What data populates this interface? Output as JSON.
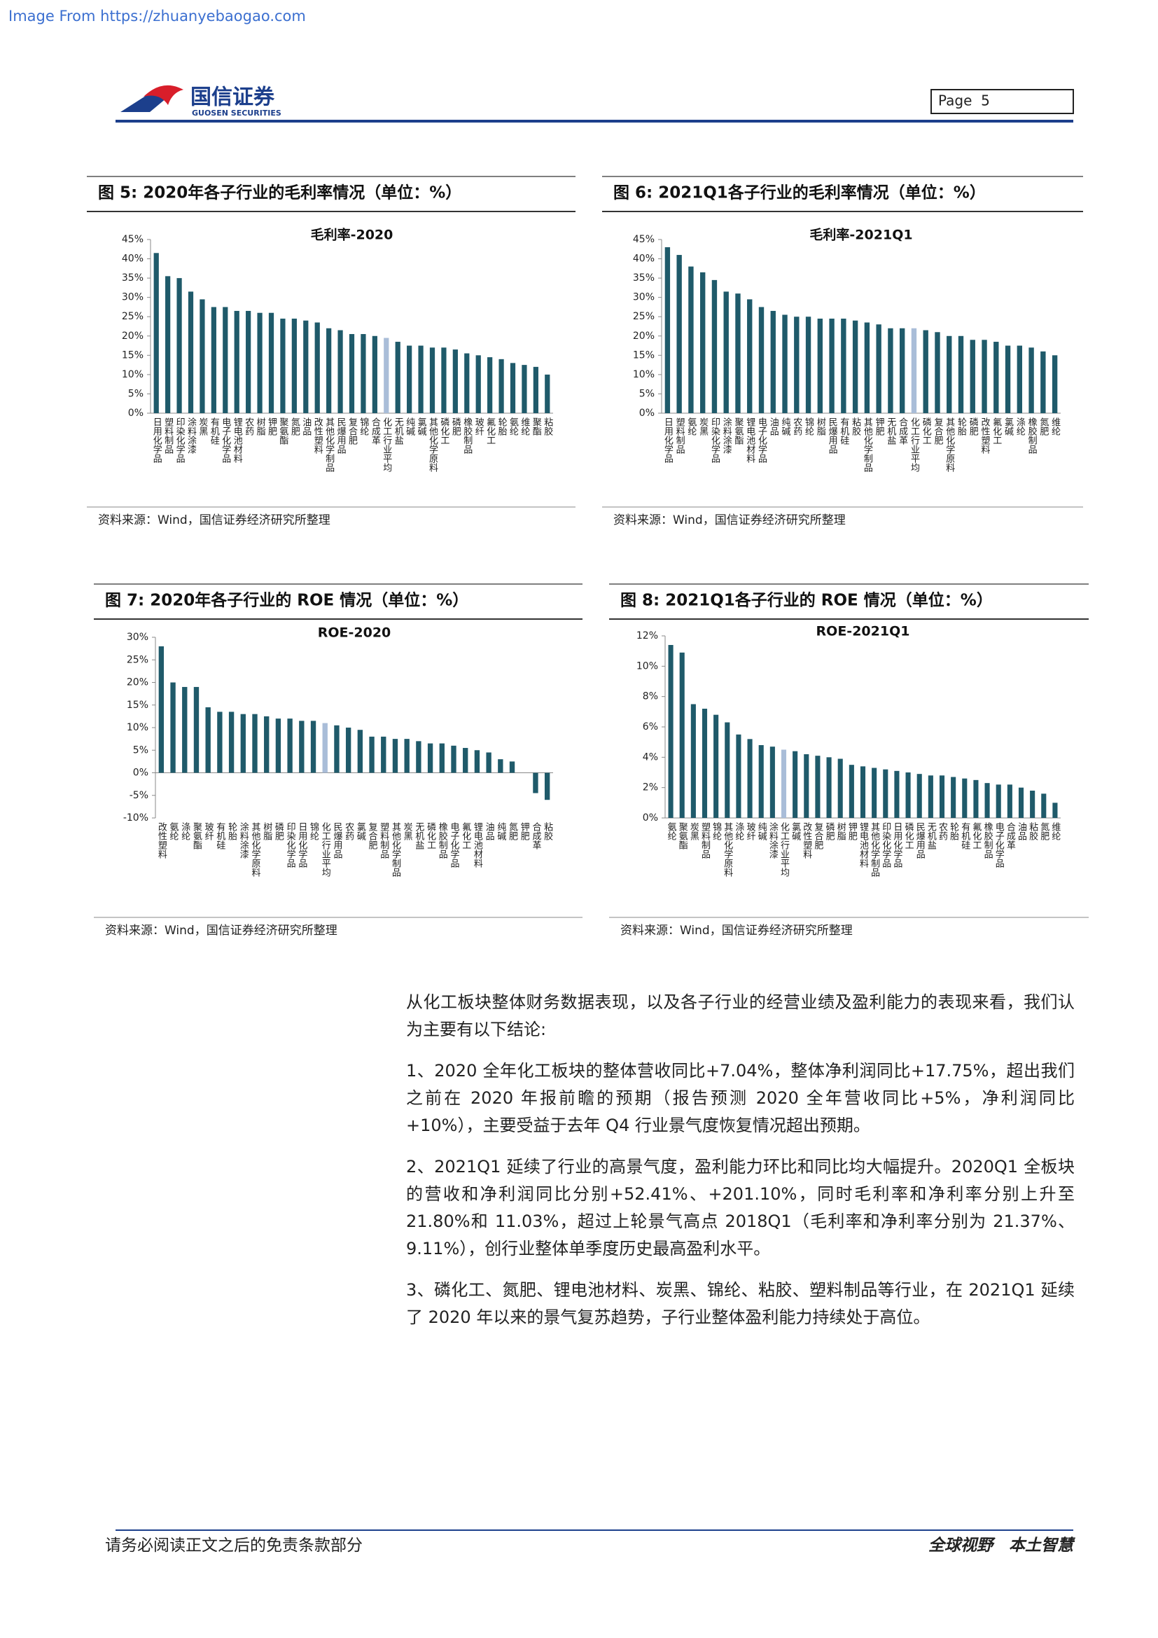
{
  "header": {
    "source_url": "Image From https://zhuanyebaogao.com",
    "logo_cn": "国信证券",
    "logo_en": "GUOSEN SECURITIES",
    "page": "Page  5"
  },
  "chart_data": [
    {
      "type": "bar",
      "figure_label": "图 5:",
      "title": "2020年各子行业的毛利率情况（单位：%）",
      "chart_title": "毛利率-2020",
      "categories": [
        "日用化学品",
        "塑料制品",
        "印染化学品",
        "涂料涂漆",
        "炭黑",
        "有机硅",
        "电子化学品",
        "锂电池材料",
        "农药",
        "树脂",
        "钾肥",
        "聚氨酯",
        "氮肥",
        "油品",
        "改性塑料",
        "其他化学制品",
        "民爆用品",
        "复合肥",
        "锦纶",
        "合成革",
        "化工行业平均",
        "无机盐",
        "纯碱",
        "氯碱",
        "其他化学原料",
        "磷化工",
        "磷肥",
        "橡胶制品",
        "玻纤",
        "氟化工",
        "轮胎",
        "氨纶",
        "维纶",
        "聚酯",
        "粘胶"
      ],
      "values": [
        41.5,
        35.5,
        35,
        31.5,
        29.5,
        27.5,
        27.5,
        26.5,
        26.5,
        26,
        26,
        24.5,
        24.5,
        24,
        23.5,
        22,
        21.5,
        20.5,
        20.5,
        20,
        19.5,
        18.5,
        17.5,
        17.5,
        17,
        17,
        16.5,
        15.5,
        15,
        14.5,
        14,
        13,
        12.5,
        12,
        10
      ],
      "color": "#1f5a6a",
      "highlight_index": 20,
      "highlight_color": "#a9bdd8",
      "ylim": [
        0,
        45
      ],
      "yticks": [
        {
          "value": 0,
          "label": "0%"
        },
        {
          "value": 5,
          "label": "5%"
        },
        {
          "value": 10,
          "label": "10%"
        },
        {
          "value": 15,
          "label": "15%"
        },
        {
          "value": 20,
          "label": "20%"
        },
        {
          "value": 25,
          "label": "25%"
        },
        {
          "value": 30,
          "label": "30%"
        },
        {
          "value": 35,
          "label": "35%"
        },
        {
          "value": 40,
          "label": "40%"
        },
        {
          "value": 45,
          "label": "45%"
        }
      ],
      "source": "资料来源：Wind，国信证券经济研究所整理"
    },
    {
      "type": "bar",
      "figure_label": "图 6:",
      "title": "2021Q1各子行业的毛利率情况（单位：%）",
      "chart_title": "毛利率-2021Q1",
      "categories": [
        "日用化学品",
        "塑料制品",
        "氨纶",
        "炭黑",
        "印染化学品",
        "涂料涂漆",
        "聚氨酯",
        "锂电池材料",
        "电子化学品",
        "油品",
        "纯碱",
        "农药",
        "锦纶",
        "树脂",
        "民爆用品",
        "有机硅",
        "粘胶",
        "其他化学制品",
        "钾肥",
        "无机盐",
        "合成革",
        "化工行业平均",
        "磷化工",
        "复合肥",
        "其他化学原料",
        "轮胎",
        "磷肥",
        "改性塑料",
        "氟化工",
        "氯碱",
        "涤纶",
        "橡胶制品",
        "氮肥",
        "维纶"
      ],
      "values": [
        43,
        41,
        38,
        36.5,
        34.5,
        31.5,
        31,
        29.5,
        27.5,
        26.5,
        25.5,
        25,
        25,
        24.5,
        24.5,
        24.5,
        24,
        23.5,
        23,
        22,
        22,
        22,
        21.5,
        21,
        20,
        20,
        19,
        19,
        18.5,
        17.5,
        17.5,
        17,
        16,
        15
      ],
      "color": "#1f5a6a",
      "highlight_index": 21,
      "highlight_color": "#a9bdd8",
      "ylim": [
        0,
        45
      ],
      "yticks": [
        {
          "value": 0,
          "label": "0%"
        },
        {
          "value": 5,
          "label": "5%"
        },
        {
          "value": 10,
          "label": "10%"
        },
        {
          "value": 15,
          "label": "15%"
        },
        {
          "value": 20,
          "label": "20%"
        },
        {
          "value": 25,
          "label": "25%"
        },
        {
          "value": 30,
          "label": "30%"
        },
        {
          "value": 35,
          "label": "35%"
        },
        {
          "value": 40,
          "label": "40%"
        },
        {
          "value": 45,
          "label": "45%"
        }
      ],
      "source": "资料来源：Wind，国信证券经济研究所整理"
    },
    {
      "type": "bar",
      "figure_label": "图 7:",
      "title": "2020年各子行业的 ROE 情况（单位：%）",
      "chart_title": "ROE-2020",
      "categories": [
        "改性塑料",
        "氨纶",
        "涤纶",
        "聚氨酯",
        "玻纤",
        "有机硅",
        "轮胎",
        "涂料涂漆",
        "其他化学原料",
        "树脂",
        "磷肥",
        "印染化学品",
        "日用化学品",
        "锦纶",
        "化工行业平均",
        "民爆用品",
        "农药",
        "氯碱",
        "复合肥",
        "塑料制品",
        "其他化学制品",
        "炭黑",
        "无机盐",
        "磷化工",
        "橡胶制品",
        "电子化学品",
        "氟化工",
        "锂电池材料",
        "油品",
        "纯碱",
        "氮肥",
        "钾肥",
        "合成革",
        "粘胶"
      ],
      "values": [
        28,
        20,
        19,
        19,
        14.5,
        13.5,
        13.5,
        13,
        13,
        12.5,
        12,
        12,
        11.5,
        11.5,
        11,
        10.5,
        10,
        9.5,
        8,
        8,
        7.5,
        7.5,
        7,
        6.5,
        6.5,
        6,
        5.5,
        5,
        4.5,
        3,
        2.5,
        0,
        -4.5,
        -6
      ],
      "color": "#1f5a6a",
      "highlight_index": 14,
      "highlight_color": "#a9bdd8",
      "ylim": [
        -10,
        30
      ],
      "yticks": [
        {
          "value": -10,
          "label": "-10%"
        },
        {
          "value": -5,
          "label": "-5%"
        },
        {
          "value": 0,
          "label": "0%"
        },
        {
          "value": 5,
          "label": "5%"
        },
        {
          "value": 10,
          "label": "10%"
        },
        {
          "value": 15,
          "label": "15%"
        },
        {
          "value": 20,
          "label": "20%"
        },
        {
          "value": 25,
          "label": "25%"
        },
        {
          "value": 30,
          "label": "30%"
        }
      ],
      "source": "资料来源：Wind，国信证券经济研究所整理"
    },
    {
      "type": "bar",
      "figure_label": "图 8:",
      "title": "2021Q1各子行业的 ROE 情况（单位：%）",
      "chart_title": "ROE-2021Q1",
      "categories": [
        "氨纶",
        "聚氨酯",
        "炭黑",
        "塑料制品",
        "锦纶",
        "其他化学原料",
        "涤纶",
        "玻纤",
        "纯碱",
        "涂料涂漆",
        "化工行业平均",
        "氯碱",
        "改性塑料",
        "复合肥",
        "磷肥",
        "树脂",
        "钾肥",
        "锂电池材料",
        "其他化学制品",
        "印染化学品",
        "日用化学品",
        "磷化工",
        "民爆用品",
        "无机盐",
        "农药",
        "轮胎",
        "有机硅",
        "氟化工",
        "橡胶制品",
        "电子化学品",
        "合成革",
        "油品",
        "粘胶",
        "氮肥",
        "维纶"
      ],
      "values": [
        11.4,
        10.9,
        7.5,
        7.2,
        6.8,
        6.3,
        5.5,
        5.2,
        4.8,
        4.7,
        4.5,
        4.4,
        4.2,
        4.1,
        4.0,
        3.9,
        3.5,
        3.4,
        3.3,
        3.2,
        3.1,
        3.0,
        2.9,
        2.8,
        2.8,
        2.7,
        2.6,
        2.5,
        2.3,
        2.2,
        2.2,
        2.0,
        1.8,
        1.6,
        1.0
      ],
      "color": "#1f5a6a",
      "highlight_index": 10,
      "highlight_color": "#a9bdd8",
      "ylim": [
        0,
        12
      ],
      "yticks": [
        {
          "value": 0,
          "label": "0%"
        },
        {
          "value": 2,
          "label": "2%"
        },
        {
          "value": 4,
          "label": "4%"
        },
        {
          "value": 6,
          "label": "6%"
        },
        {
          "value": 8,
          "label": "8%"
        },
        {
          "value": 10,
          "label": "10%"
        },
        {
          "value": 12,
          "label": "12%"
        }
      ],
      "source": "资料来源：Wind，国信证券经济研究所整理"
    }
  ],
  "body": {
    "paragraphs": [
      "从化工板块整体财务数据表现，以及各子行业的经营业绩及盈利能力的表现来看，我们认为主要有以下结论:",
      "1、2020 全年化工板块的整体营收同比+7.04%，整体净利润同比+17.75%，超出我们之前在 2020 年报前瞻的预期（报告预测 2020 全年营收同比+5%，净利润同比+10%），主要受益于去年 Q4 行业景气度恢复情况超出预期。",
      "2、2021Q1 延续了行业的高景气度，盈利能力环比和同比均大幅提升。2020Q1 全板块的营收和净利润同比分别+52.41%、+201.10%，同时毛利率和净利率分别上升至 21.80%和 11.03%，超过上轮景气高点 2018Q1（毛利率和净利率分别为 21.37%、9.11%），创行业整体单季度历史最高盈利水平。",
      "3、磷化工、氮肥、锂电池材料、炭黑、锦纶、粘胶、塑料制品等行业，在 2021Q1 延续了 2020 年以来的景气复苏趋势，子行业整体盈利能力持续处于高位。"
    ]
  },
  "footer": {
    "disclaimer": "请务必阅读正文之后的免责条款部分",
    "slogan": "全球视野　本土智慧"
  }
}
